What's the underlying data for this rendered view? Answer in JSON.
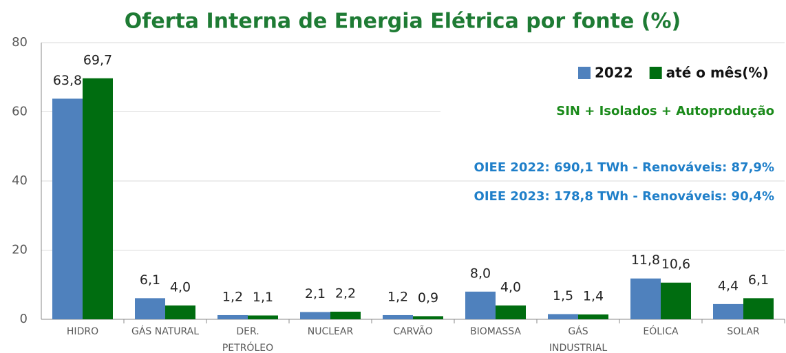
{
  "chart_data": {
    "type": "bar",
    "title": "Oferta Interna de Energia Elétrica por fonte (%)",
    "categories": [
      "HIDRO",
      "GÁS NATURAL",
      "DER. PETRÓLEO",
      "NUCLEAR",
      "CARVÃO",
      "BIOMASSA",
      "GÁS INDUSTRIAL",
      "EÓLICA",
      "SOLAR"
    ],
    "series": [
      {
        "name": "2022",
        "color": "#4f81bd",
        "values": [
          63.8,
          6.1,
          1.2,
          2.1,
          1.2,
          8.0,
          1.5,
          11.8,
          4.4
        ],
        "value_labels": [
          "63,8",
          "6,1",
          "1,2",
          "2,1",
          "1,2",
          "8,0",
          "1,5",
          "11,8",
          "4,4"
        ]
      },
      {
        "name": "até o mês(%)",
        "color": "#006d10",
        "values": [
          69.7,
          4.0,
          1.1,
          2.2,
          0.9,
          4.0,
          1.4,
          10.6,
          6.1
        ],
        "value_labels": [
          "69,7",
          "4,0",
          "1,1",
          "2,2",
          "0,9",
          "4,0",
          "1,4",
          "10,6",
          "6,1"
        ]
      }
    ],
    "ylim": [
      0,
      80
    ],
    "yticks": [
      0,
      20,
      40,
      60,
      80
    ],
    "grid": true,
    "legend": "top-right",
    "annotations": [
      {
        "text": "SIN + Isolados + Autoprodução",
        "color": "#1a8a1a"
      },
      {
        "text": "OIEE 2022: 690,1 TWh - Renováveis: 87,9%",
        "color": "#1f7fc9"
      },
      {
        "text": "OIEE 2023: 178,8 TWh - Renováveis: 90,4%",
        "color": "#1f7fc9"
      }
    ]
  }
}
